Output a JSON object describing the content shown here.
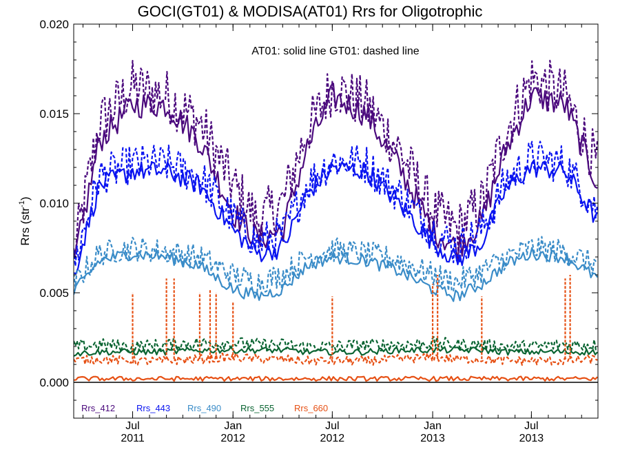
{
  "chart_data": {
    "type": "line",
    "title": "GOCI(GT01) & MODISA(AT01)  Rrs for Oligotrophic",
    "annotation": "AT01: solid line   GT01: dashed line",
    "ylabel_main": "Rrs (str",
    "ylabel_sup": "-1",
    "ylabel_end": ")",
    "ylim": [
      -0.002,
      0.02
    ],
    "yticks": [
      "0.000",
      "0.005",
      "0.010",
      "0.015",
      "0.020"
    ],
    "ytick_values": [
      0.0,
      0.005,
      0.01,
      0.015,
      0.02
    ],
    "xlim": [
      "2011-03-15",
      "2013-10-31"
    ],
    "xticks": [
      {
        "date": "2011-07-01",
        "month": "Jul",
        "year": "2011"
      },
      {
        "date": "2012-01-01",
        "month": "Jan",
        "year": "2012"
      },
      {
        "date": "2012-07-01",
        "month": "Jul",
        "year": "2012"
      },
      {
        "date": "2013-01-01",
        "month": "Jan",
        "year": "2013"
      },
      {
        "date": "2013-07-01",
        "month": "Jul",
        "year": "2013"
      }
    ],
    "zero_line": true,
    "grid": false,
    "legend_position": "bottom-left",
    "series": [
      {
        "name": "Rrs_412",
        "color": "#4b0a7d",
        "AT01": {
          "dates": [
            "2011-03-15",
            "2011-05-01",
            "2011-07-01",
            "2011-09-01",
            "2011-11-01",
            "2012-01-01",
            "2012-02-15",
            "2012-04-01",
            "2012-05-15",
            "2012-07-01",
            "2012-09-01",
            "2012-11-01",
            "2013-01-01",
            "2013-02-15",
            "2013-04-01",
            "2013-05-15",
            "2013-07-01",
            "2013-09-01",
            "2013-10-31"
          ],
          "values": [
            0.0065,
            0.0135,
            0.0155,
            0.0155,
            0.0135,
            0.0095,
            0.008,
            0.0085,
            0.013,
            0.016,
            0.015,
            0.012,
            0.0085,
            0.0075,
            0.009,
            0.013,
            0.016,
            0.0155,
            0.011
          ]
        },
        "GT01": {
          "dates": [
            "2011-03-15",
            "2011-05-01",
            "2011-07-01",
            "2011-09-01",
            "2011-11-01",
            "2012-01-01",
            "2012-02-15",
            "2012-04-01",
            "2012-05-15",
            "2012-07-01",
            "2012-09-01",
            "2012-11-01",
            "2013-01-01",
            "2013-02-15",
            "2013-04-01",
            "2013-05-15",
            "2013-07-01",
            "2013-09-01",
            "2013-10-31"
          ],
          "values": [
            0.007,
            0.0145,
            0.0165,
            0.016,
            0.0145,
            0.011,
            0.009,
            0.01,
            0.014,
            0.0165,
            0.0155,
            0.013,
            0.0095,
            0.0085,
            0.01,
            0.014,
            0.017,
            0.016,
            0.012
          ]
        }
      },
      {
        "name": "Rrs_443",
        "color": "#0a14f0",
        "AT01": {
          "dates": [
            "2011-03-15",
            "2011-05-01",
            "2011-07-01",
            "2011-09-01",
            "2011-11-01",
            "2012-01-01",
            "2012-02-15",
            "2012-04-01",
            "2012-05-15",
            "2012-07-01",
            "2012-09-01",
            "2012-11-01",
            "2013-01-01",
            "2013-02-15",
            "2013-04-01",
            "2013-05-15",
            "2013-07-01",
            "2013-09-01",
            "2013-10-31"
          ],
          "values": [
            0.006,
            0.011,
            0.0118,
            0.0118,
            0.011,
            0.0085,
            0.0072,
            0.0075,
            0.0105,
            0.012,
            0.0118,
            0.01,
            0.0078,
            0.0068,
            0.0078,
            0.0108,
            0.012,
            0.0118,
            0.009
          ]
        },
        "GT01": {
          "dates": [
            "2011-03-15",
            "2011-05-01",
            "2011-07-01",
            "2011-09-01",
            "2011-11-01",
            "2012-01-01",
            "2012-02-15",
            "2012-04-01",
            "2012-05-15",
            "2012-07-01",
            "2012-09-01",
            "2012-11-01",
            "2013-01-01",
            "2013-02-15",
            "2013-04-01",
            "2013-05-15",
            "2013-07-01",
            "2013-09-01",
            "2013-10-31"
          ],
          "values": [
            0.0065,
            0.0115,
            0.0122,
            0.0122,
            0.0115,
            0.0092,
            0.0078,
            0.0082,
            0.011,
            0.0124,
            0.0122,
            0.0105,
            0.0085,
            0.0075,
            0.0085,
            0.0112,
            0.0125,
            0.0122,
            0.0095
          ]
        }
      },
      {
        "name": "Rrs_490",
        "color": "#3a8cc8",
        "AT01": {
          "dates": [
            "2011-03-15",
            "2011-05-01",
            "2011-07-01",
            "2011-09-01",
            "2011-11-01",
            "2012-01-01",
            "2012-02-15",
            "2012-04-01",
            "2012-05-15",
            "2012-07-01",
            "2012-09-01",
            "2012-11-01",
            "2013-01-01",
            "2013-02-15",
            "2013-04-01",
            "2013-05-15",
            "2013-07-01",
            "2013-09-01",
            "2013-10-31"
          ],
          "values": [
            0.005,
            0.0068,
            0.0072,
            0.007,
            0.0065,
            0.0052,
            0.0048,
            0.0052,
            0.0065,
            0.007,
            0.0068,
            0.0062,
            0.0052,
            0.0048,
            0.0055,
            0.0066,
            0.0072,
            0.007,
            0.0058
          ]
        },
        "GT01": {
          "dates": [
            "2011-03-15",
            "2011-05-01",
            "2011-07-01",
            "2011-09-01",
            "2011-11-01",
            "2012-01-01",
            "2012-02-15",
            "2012-04-01",
            "2012-05-15",
            "2012-07-01",
            "2012-09-01",
            "2012-11-01",
            "2013-01-01",
            "2013-02-15",
            "2013-04-01",
            "2013-05-15",
            "2013-07-01",
            "2013-09-01",
            "2013-10-31"
          ],
          "values": [
            0.0055,
            0.0072,
            0.0075,
            0.0073,
            0.007,
            0.006,
            0.0056,
            0.006,
            0.007,
            0.0074,
            0.0072,
            0.0068,
            0.006,
            0.0056,
            0.0062,
            0.007,
            0.0075,
            0.0073,
            0.0065
          ]
        }
      },
      {
        "name": "Rrs_555",
        "color": "#0a6432",
        "AT01": {
          "dates": [
            "2011-03-15",
            "2011-05-01",
            "2011-07-01",
            "2011-09-01",
            "2011-11-01",
            "2012-01-01",
            "2012-02-15",
            "2012-04-01",
            "2012-05-15",
            "2012-07-01",
            "2012-09-01",
            "2012-11-01",
            "2013-01-01",
            "2013-02-15",
            "2013-04-01",
            "2013-05-15",
            "2013-07-01",
            "2013-09-01",
            "2013-10-31"
          ],
          "values": [
            0.0016,
            0.0017,
            0.0017,
            0.0017,
            0.0018,
            0.0018,
            0.0018,
            0.0018,
            0.0017,
            0.0017,
            0.0017,
            0.0018,
            0.0018,
            0.0018,
            0.0018,
            0.0017,
            0.0017,
            0.0017,
            0.0017
          ]
        },
        "GT01": {
          "dates": [
            "2011-03-15",
            "2011-05-01",
            "2011-07-01",
            "2011-09-01",
            "2011-11-01",
            "2012-01-01",
            "2012-02-15",
            "2012-04-01",
            "2012-05-15",
            "2012-07-01",
            "2012-09-01",
            "2012-11-01",
            "2013-01-01",
            "2013-02-15",
            "2013-04-01",
            "2013-05-15",
            "2013-07-01",
            "2013-09-01",
            "2013-10-31"
          ],
          "values": [
            0.002,
            0.0021,
            0.002,
            0.0021,
            0.0022,
            0.0022,
            0.0021,
            0.0021,
            0.002,
            0.002,
            0.0021,
            0.0021,
            0.0022,
            0.0021,
            0.0021,
            0.002,
            0.002,
            0.0021,
            0.0021
          ]
        }
      },
      {
        "name": "Rrs_660",
        "color": "#e65014",
        "AT01": {
          "dates": [
            "2011-03-15",
            "2011-05-01",
            "2011-07-01",
            "2011-09-01",
            "2011-11-01",
            "2012-01-01",
            "2012-02-15",
            "2012-04-01",
            "2012-05-15",
            "2012-07-01",
            "2012-09-01",
            "2012-11-01",
            "2013-01-01",
            "2013-02-15",
            "2013-04-01",
            "2013-05-15",
            "2013-07-01",
            "2013-09-01",
            "2013-10-31"
          ],
          "values": [
            0.0002,
            0.0002,
            0.0002,
            0.0002,
            0.0002,
            0.0002,
            0.0002,
            0.0002,
            0.0002,
            0.0002,
            0.0002,
            0.0002,
            0.0002,
            0.0002,
            0.0002,
            0.0002,
            0.0002,
            0.0002,
            0.0002
          ]
        },
        "GT01": {
          "dates": [
            "2011-03-15",
            "2011-05-01",
            "2011-07-01",
            "2011-09-01",
            "2011-11-01",
            "2012-01-01",
            "2012-02-15",
            "2012-04-01",
            "2012-05-15",
            "2012-07-01",
            "2012-09-01",
            "2012-11-01",
            "2013-01-01",
            "2013-02-15",
            "2013-04-01",
            "2013-05-15",
            "2013-07-01",
            "2013-09-01",
            "2013-10-31"
          ],
          "values": [
            0.0012,
            0.0013,
            0.0012,
            0.0012,
            0.0013,
            0.0014,
            0.0013,
            0.0013,
            0.0012,
            0.0012,
            0.0012,
            0.0013,
            0.0014,
            0.0013,
            0.0013,
            0.0012,
            0.0012,
            0.0012,
            0.0013
          ]
        },
        "GT01_spikes": {
          "dates": [
            "2011-07-01",
            "2011-09-01",
            "2011-09-15",
            "2011-11-01",
            "2011-11-20",
            "2011-12-01",
            "2012-01-01",
            "2012-07-01",
            "2013-01-01",
            "2013-01-10",
            "2013-04-01",
            "2013-09-01",
            "2013-09-10"
          ],
          "values": [
            0.005,
            0.0058,
            0.0058,
            0.005,
            0.0052,
            0.005,
            0.0045,
            0.0048,
            0.0055,
            0.006,
            0.0048,
            0.0058,
            0.006
          ]
        }
      }
    ]
  }
}
